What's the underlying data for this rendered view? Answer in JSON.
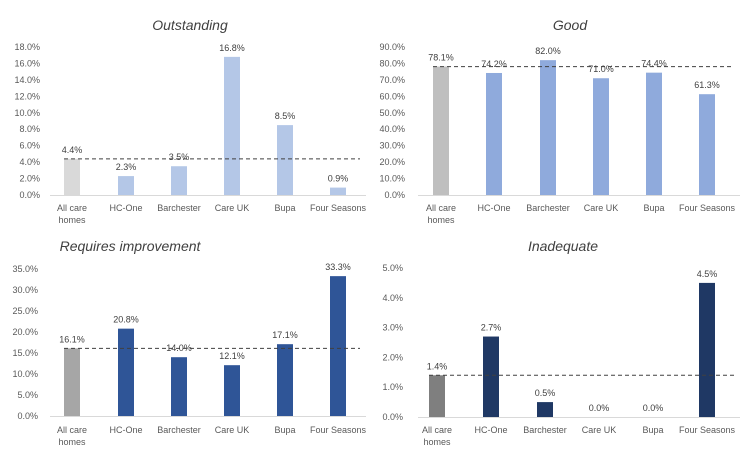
{
  "chart_data": [
    {
      "type": "bar",
      "title": "Outstanding",
      "categories": [
        "All care homes",
        "HC-One",
        "Barchester",
        "Care UK",
        "Bupa",
        "Four Seasons"
      ],
      "values": [
        4.4,
        2.3,
        3.5,
        16.8,
        8.5,
        0.9
      ],
      "labels": [
        "4.4%",
        "2.3%",
        "3.5%",
        "16.8%",
        "8.5%",
        "0.9%"
      ],
      "reference_line": 4.4,
      "ylim": [
        0,
        18
      ],
      "yticks": [
        "0.0%",
        "2.0%",
        "4.0%",
        "6.0%",
        "8.0%",
        "10.0%",
        "12.0%",
        "14.0%",
        "16.0%",
        "18.0%"
      ],
      "colors": {
        "baseline": "#d9d9d9",
        "bars": "#b4c7e7"
      },
      "grid": false
    },
    {
      "type": "bar",
      "title": "Good",
      "categories": [
        "All care homes",
        "HC-One",
        "Barchester",
        "Care UK",
        "Bupa",
        "Four Seasons"
      ],
      "values": [
        78.1,
        74.2,
        82.0,
        71.0,
        74.4,
        61.3
      ],
      "labels": [
        "78.1%",
        "74.2%",
        "82.0%",
        "71.0%",
        "74.4%",
        "61.3%"
      ],
      "reference_line": 78.1,
      "ylim": [
        0,
        90
      ],
      "yticks": [
        "0.0%",
        "10.0%",
        "20.0%",
        "30.0%",
        "40.0%",
        "50.0%",
        "60.0%",
        "70.0%",
        "80.0%",
        "90.0%"
      ],
      "colors": {
        "baseline": "#bfbfbf",
        "bars": "#8faadc"
      },
      "grid": false
    },
    {
      "type": "bar",
      "title": "Requires improvement",
      "categories": [
        "All care homes",
        "HC-One",
        "Barchester",
        "Care UK",
        "Bupa",
        "Four Seasons"
      ],
      "values": [
        16.1,
        20.8,
        14.0,
        12.1,
        17.1,
        33.3
      ],
      "labels": [
        "16.1%",
        "20.8%",
        "14.0%",
        "12.1%",
        "17.1%",
        "33.3%"
      ],
      "reference_line": 16.1,
      "ylim": [
        0,
        35
      ],
      "yticks": [
        "0.0%",
        "5.0%",
        "10.0%",
        "15.0%",
        "20.0%",
        "25.0%",
        "30.0%",
        "35.0%"
      ],
      "colors": {
        "baseline": "#a6a6a6",
        "bars": "#2f5597"
      },
      "grid": false
    },
    {
      "type": "bar",
      "title": "Inadequate",
      "categories": [
        "All care homes",
        "HC-One",
        "Barchester",
        "Care UK",
        "Bupa",
        "Four Seasons"
      ],
      "values": [
        1.4,
        2.7,
        0.5,
        0.0,
        0.0,
        4.5
      ],
      "labels": [
        "1.4%",
        "2.7%",
        "0.5%",
        "0.0%",
        "0.0%",
        "4.5%"
      ],
      "reference_line": 1.4,
      "ylim": [
        0,
        5
      ],
      "yticks": [
        "0.0%",
        "1.0%",
        "2.0%",
        "3.0%",
        "4.0%",
        "5.0%"
      ],
      "colors": {
        "baseline": "#7f7f7f",
        "bars": "#1f3864"
      },
      "grid": false
    }
  ]
}
